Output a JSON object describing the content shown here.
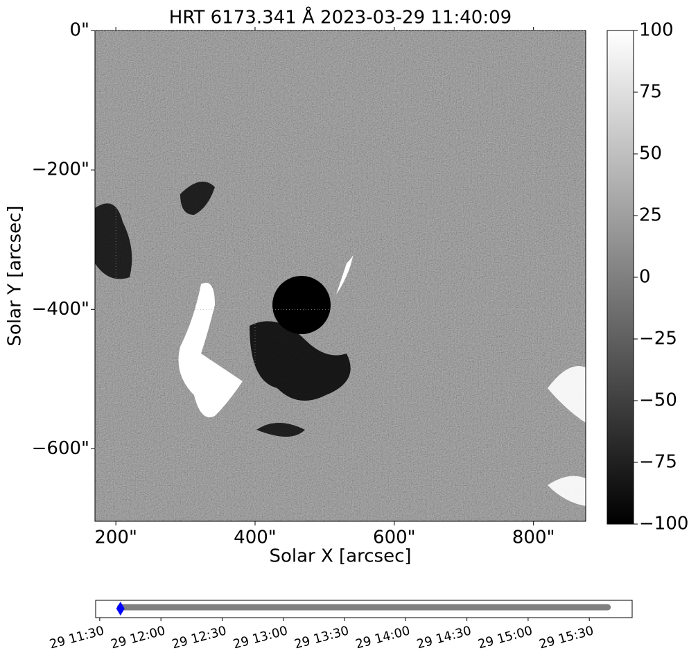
{
  "chart_data": [
    {
      "type": "image",
      "title": "HRT 6173.341 Å 2023-03-29 11:40:09",
      "x_label": "Solar X [arcsec]",
      "y_label": "Solar Y [arcsec]",
      "xlim": [
        170,
        875
      ],
      "ylim": [
        -704,
        0
      ],
      "xticks": [
        {
          "value": 200,
          "label": "200\""
        },
        {
          "value": 400,
          "label": "400\""
        },
        {
          "value": 600,
          "label": "600\""
        },
        {
          "value": 800,
          "label": "800\""
        }
      ],
      "yticks": [
        {
          "value": 0,
          "label": "0\""
        },
        {
          "value": -200,
          "label": "−200\""
        },
        {
          "value": -400,
          "label": "−400\""
        },
        {
          "value": -600,
          "label": "−600\""
        }
      ],
      "colorbar": {
        "lim": [
          -100,
          100
        ],
        "ticks": [
          100,
          75,
          50,
          25,
          0,
          {
            "value": -25,
            "label": "−25"
          },
          {
            "value": -50,
            "label": "−50"
          },
          {
            "value": -75,
            "label": "−75"
          },
          {
            "value": -100,
            "label": "−100"
          }
        ]
      }
    },
    {
      "type": "timeline",
      "xlim": [
        "29 11:28",
        "29 15:51"
      ],
      "xticks": [
        "29 11:30",
        "29 12:00",
        "29 12:30",
        "29 13:00",
        "29 13:30",
        "29 14:00",
        "29 14:30",
        "29 15:00",
        "29 15:30"
      ],
      "span": [
        "29 11:40",
        "29 15:39"
      ],
      "span_color": "#808080",
      "current": "29 11:40:09",
      "current_color": "#0000ff"
    }
  ]
}
